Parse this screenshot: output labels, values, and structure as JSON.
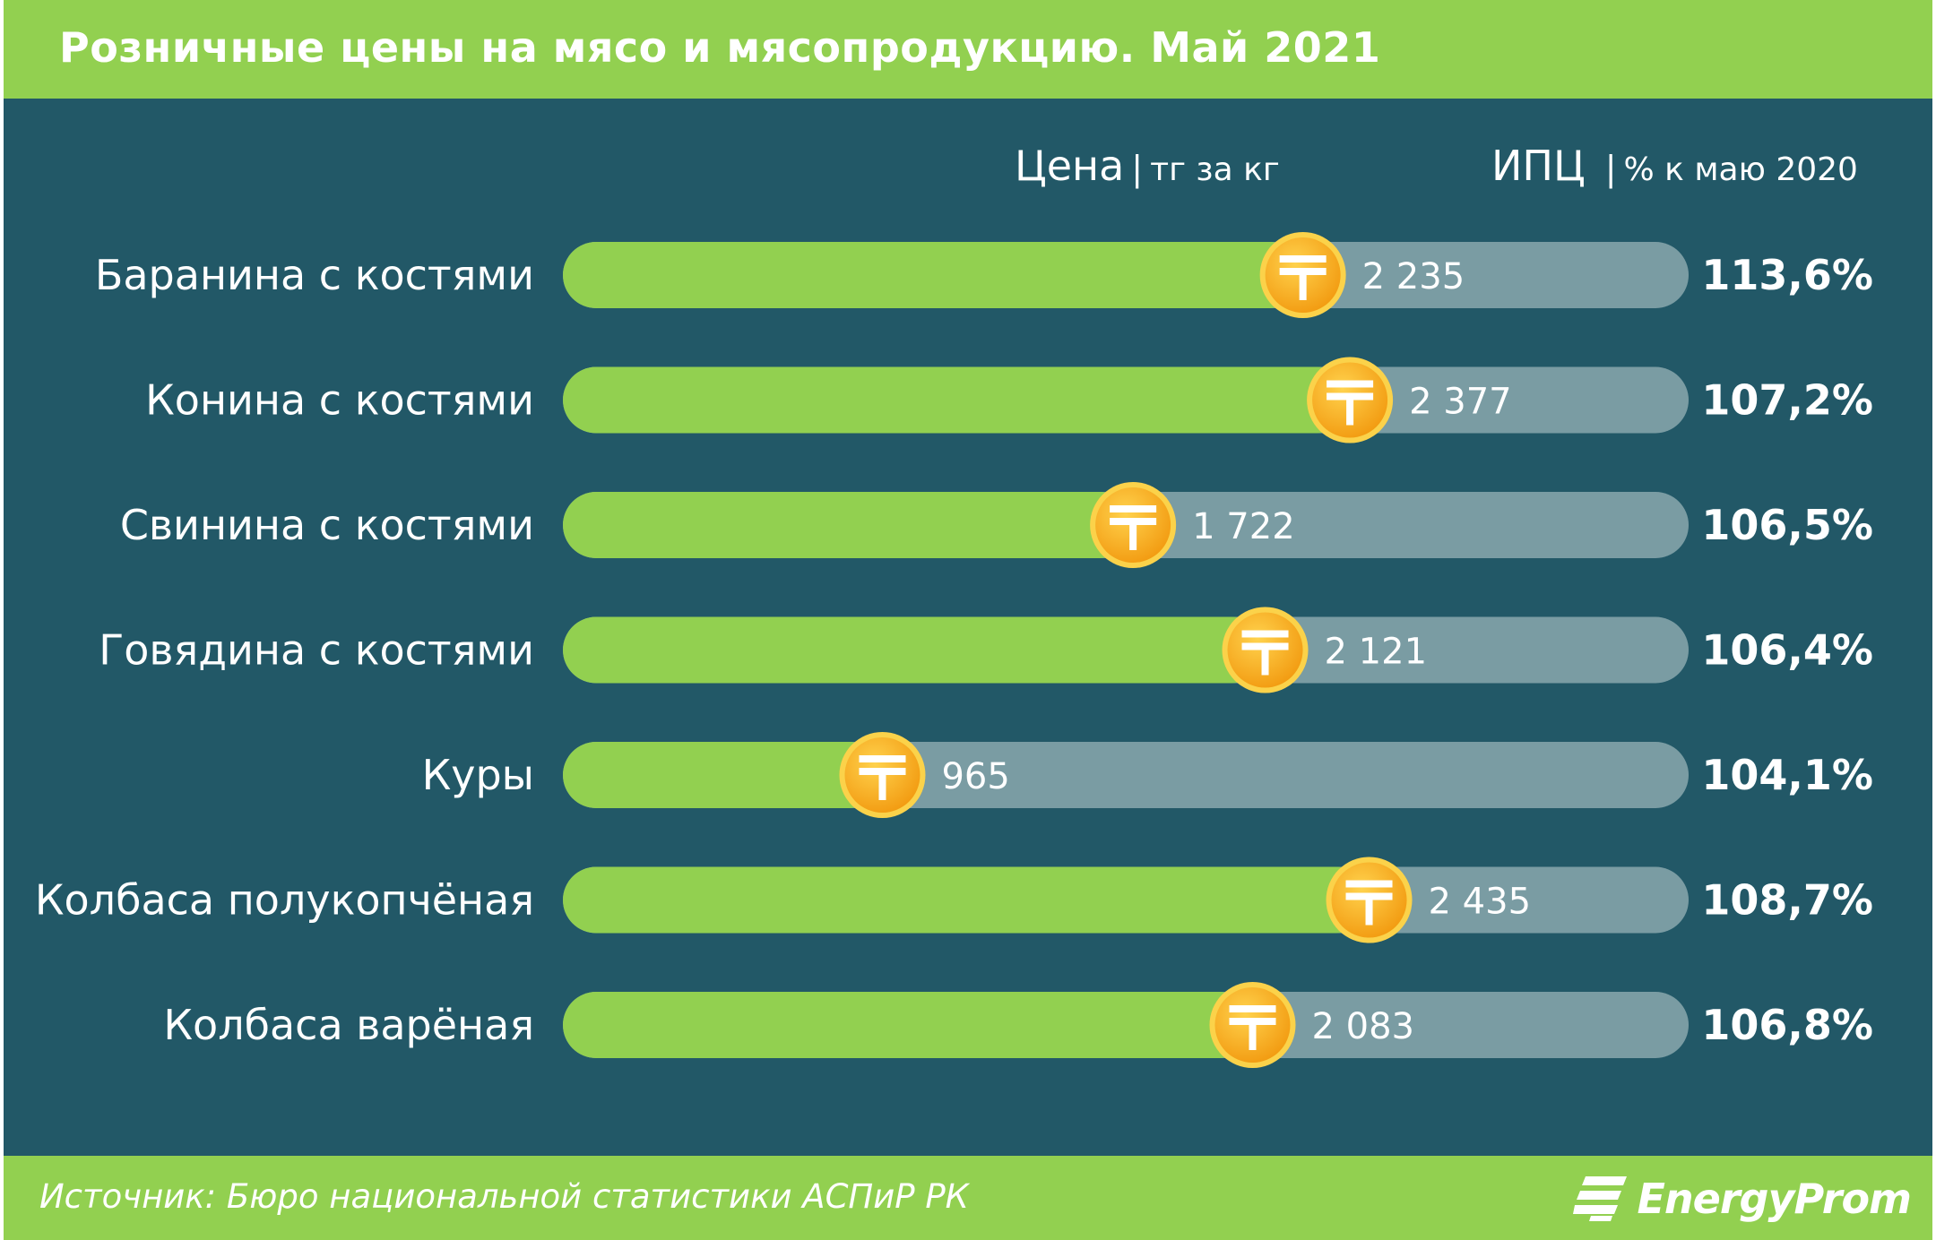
{
  "title": "Розничные цены на мясо и мясопродукцию. Май 2021",
  "headers": {
    "price_main": "Цена",
    "price_sep": "|",
    "price_unit": "тг за кг",
    "ipc_main": "ИПЦ",
    "ipc_sep": "|",
    "ipc_unit": "% к маю 2020"
  },
  "source": "Источник: Бюро национальной  статистики АСПиР РК",
  "logo": {
    "text": "EnergyProm",
    "icon": "energyprom-logo-icon"
  },
  "colors": {
    "background": "#225867",
    "accent": "#92d050",
    "track": "#7a9ca3",
    "coin": "#f7b21e",
    "coin_border": "#fbd24a"
  },
  "chart_data": {
    "type": "bar",
    "orientation": "horizontal",
    "categories": [
      "Баранина с костями",
      "Конина с костями",
      "Свинина с костями",
      "Говядина с костями",
      "Куры",
      "Колбаса полукопчёная",
      "Колбаса варёная"
    ],
    "series": [
      {
        "name": "Цена",
        "values": [
          2235,
          2377,
          1722,
          2121,
          965,
          2435,
          2083
        ],
        "labels": [
          "2 235",
          "2 377",
          "1 722",
          "2 121",
          "965",
          "2 435",
          "2 083"
        ]
      },
      {
        "name": "ИПЦ",
        "values": [
          113.6,
          107.2,
          106.5,
          106.4,
          104.1,
          108.7,
          106.8
        ],
        "labels": [
          "113,6%",
          "107,2%",
          "106,5%",
          "106,4%",
          "104,1%",
          "108,7%",
          "106,8%"
        ]
      }
    ],
    "xlim": [
      0,
      3400
    ],
    "icon": "tenge-coin-icon"
  }
}
